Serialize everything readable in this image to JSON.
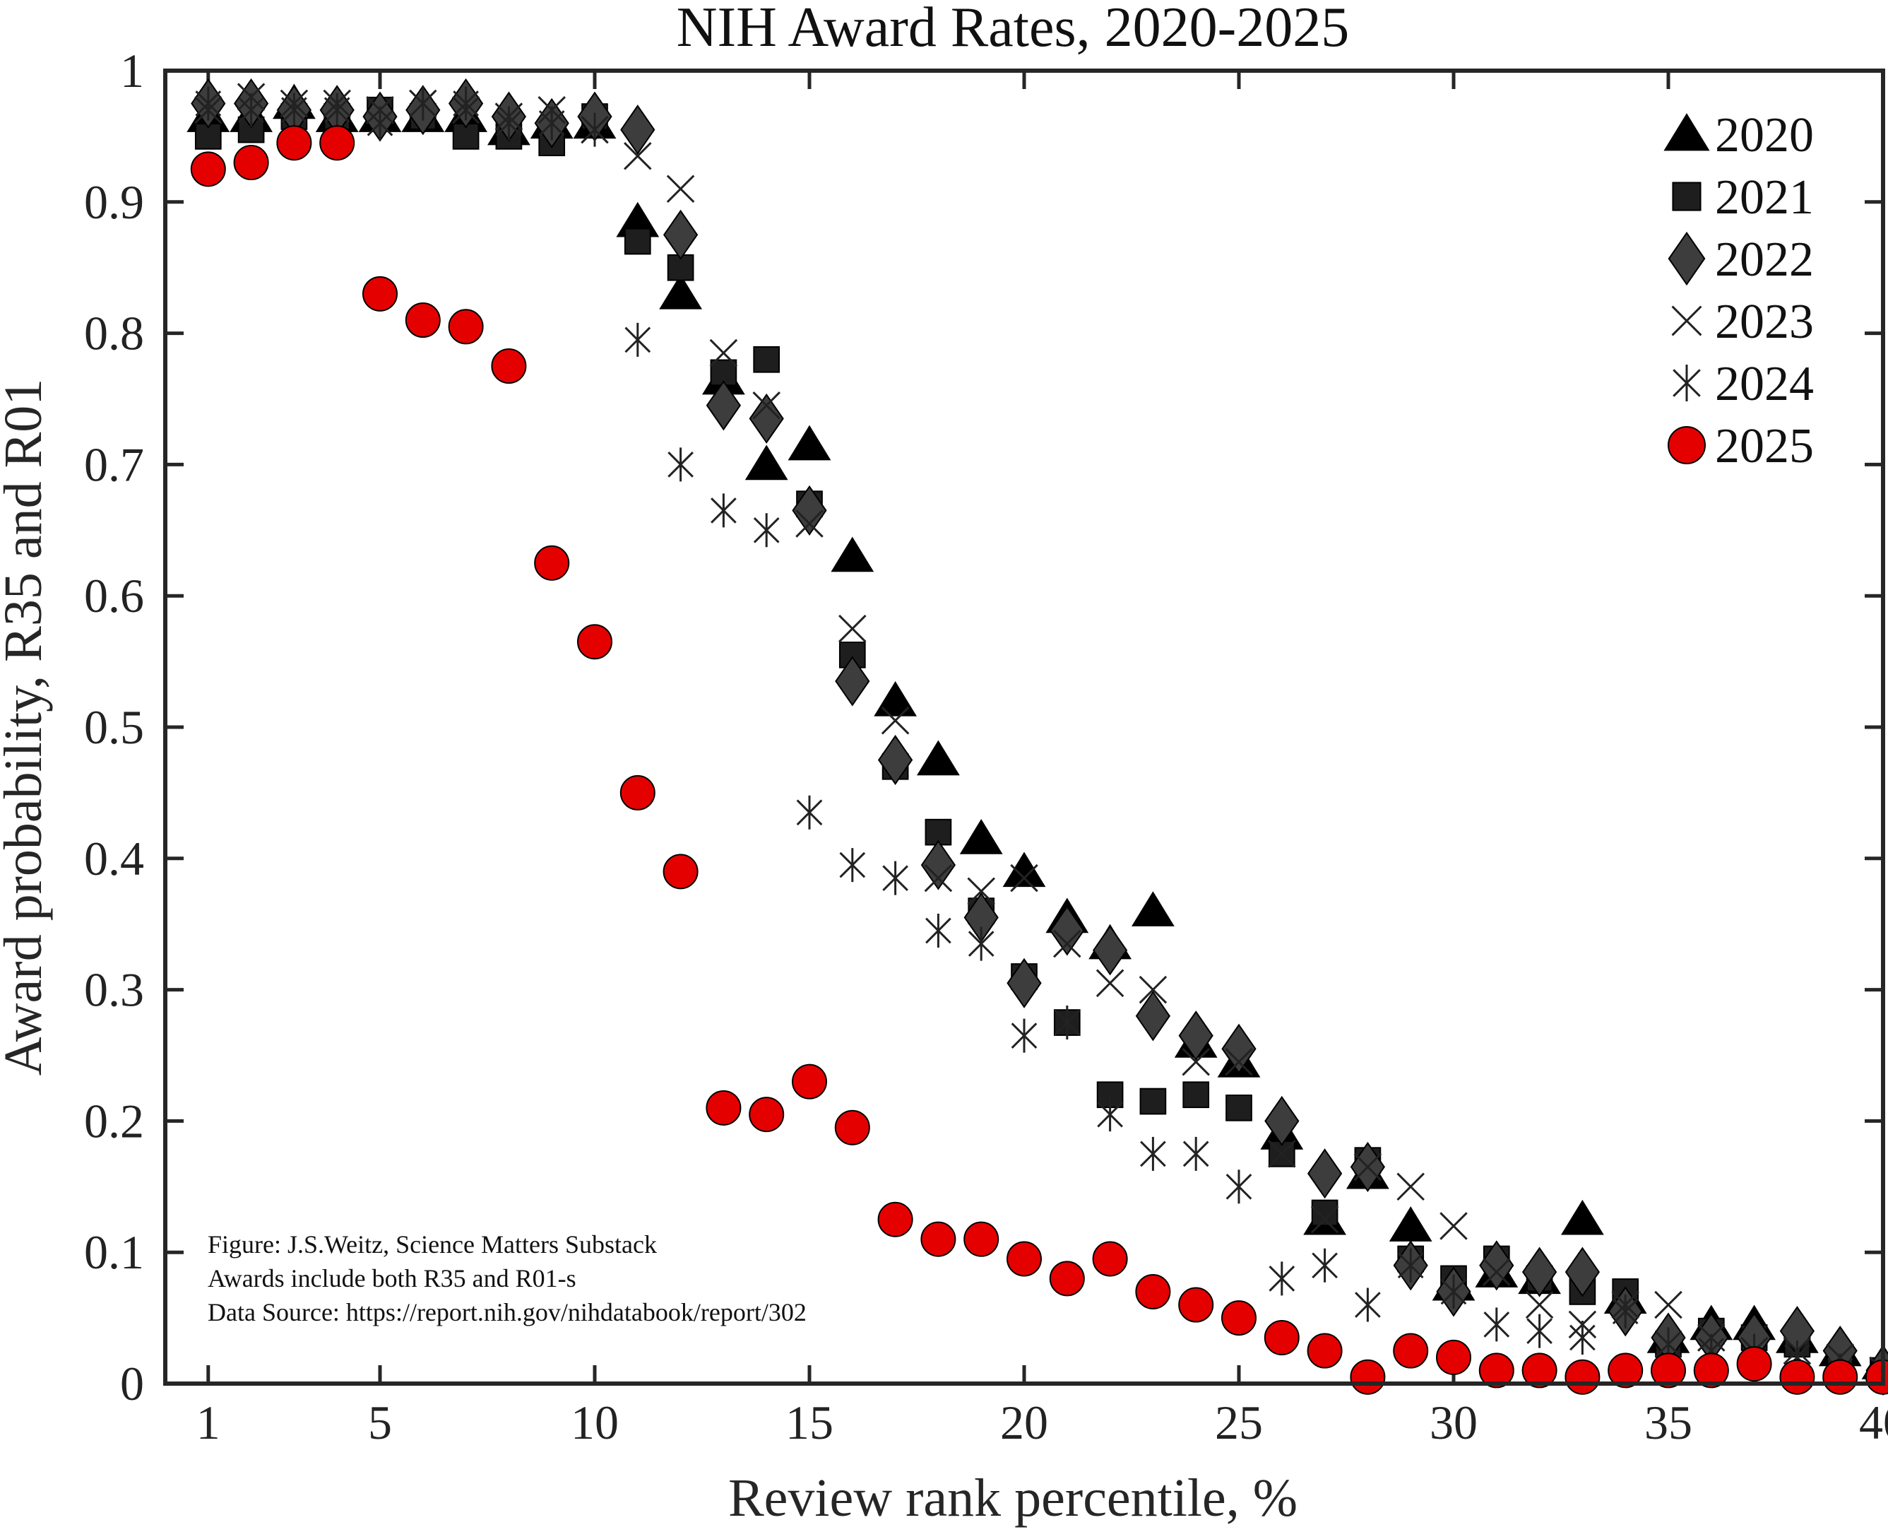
{
  "chart_data": {
    "type": "scatter",
    "title": "NIH Award Rates, 2020-2025",
    "xlabel": "Review rank percentile, %",
    "ylabel": "Award probability, R35 and R01",
    "xlim": [
      0,
      40
    ],
    "ylim": [
      0,
      1
    ],
    "xticks": [
      1,
      5,
      10,
      15,
      20,
      25,
      30,
      35,
      40
    ],
    "yticks": [
      0,
      0.1,
      0.2,
      0.3,
      0.4,
      0.5,
      0.6,
      0.7,
      0.8,
      0.9,
      1
    ],
    "ytick_labels": [
      "0",
      "0.1",
      "0.2",
      "0.3",
      "0.4",
      "0.5",
      "0.6",
      "0.7",
      "0.8",
      "0.9",
      "1"
    ],
    "grid": false,
    "legend_position": "top-right",
    "annotation": [
      "Figure: J.S.Weitz, Science Matters Substack",
      "Awards include both R35 and R01-s",
      "Data Source: https://report.nih.gov/nihdatabook/report/302"
    ],
    "x": [
      1,
      2,
      3,
      4,
      5,
      6,
      7,
      8,
      9,
      10,
      11,
      12,
      13,
      14,
      15,
      16,
      17,
      18,
      19,
      20,
      21,
      22,
      23,
      24,
      25,
      26,
      27,
      28,
      29,
      30,
      31,
      32,
      33,
      34,
      35,
      36,
      37,
      38,
      39,
      40
    ],
    "series": [
      {
        "name": "2020",
        "marker": "triangle",
        "color": "#000000",
        "values": [
          0.965,
          0.965,
          0.975,
          0.965,
          0.965,
          0.965,
          0.965,
          0.955,
          0.96,
          0.96,
          0.885,
          0.83,
          0.765,
          0.7,
          0.715,
          0.63,
          0.52,
          0.475,
          0.415,
          0.39,
          0.355,
          0.335,
          0.36,
          0.26,
          0.245,
          0.19,
          0.125,
          0.16,
          0.12,
          0.075,
          0.085,
          0.08,
          0.125,
          0.065,
          0.035,
          0.045,
          0.045,
          0.035,
          0.025,
          0.015
        ]
      },
      {
        "name": "2021",
        "marker": "square",
        "color": "#1e1e1e",
        "values": [
          0.95,
          0.955,
          0.965,
          0.965,
          0.97,
          0.965,
          0.95,
          0.95,
          0.945,
          0.965,
          0.87,
          0.85,
          0.77,
          0.78,
          0.67,
          0.555,
          0.47,
          0.42,
          0.36,
          0.31,
          0.275,
          0.22,
          0.215,
          0.22,
          0.21,
          0.175,
          0.13,
          0.17,
          0.095,
          0.08,
          0.095,
          0.08,
          0.07,
          0.07,
          0.03,
          0.04,
          0.035,
          0.03,
          0.02,
          0.01
        ]
      },
      {
        "name": "2022",
        "marker": "diamond",
        "color": "#3d3d3d",
        "values": [
          0.975,
          0.975,
          0.97,
          0.97,
          0.965,
          0.97,
          0.975,
          0.965,
          0.96,
          0.965,
          0.955,
          0.875,
          0.745,
          0.735,
          0.665,
          0.535,
          0.475,
          0.395,
          0.355,
          0.305,
          0.345,
          0.33,
          0.28,
          0.265,
          0.255,
          0.2,
          0.16,
          0.165,
          0.09,
          0.07,
          0.09,
          0.085,
          0.085,
          0.055,
          0.035,
          0.035,
          0.035,
          0.04,
          0.025,
          0.01
        ]
      },
      {
        "name": "2023",
        "marker": "x",
        "color": "#222222",
        "values": [
          0.97,
          0.98,
          0.975,
          0.975,
          0.97,
          0.975,
          0.97,
          0.965,
          0.97,
          0.955,
          0.935,
          0.91,
          0.785,
          0.745,
          0.655,
          0.575,
          0.505,
          0.385,
          0.375,
          0.385,
          0.335,
          0.305,
          0.3,
          0.245,
          0.245,
          0.175,
          0.125,
          0.165,
          0.15,
          0.12,
          0.085,
          0.06,
          0.045,
          0.06,
          0.06,
          0.035,
          0.025,
          0.025,
          0.02,
          0.01
        ]
      },
      {
        "name": "2024",
        "marker": "asterisk",
        "color": "#222222",
        "values": [
          0.975,
          0.97,
          0.97,
          0.97,
          0.96,
          0.975,
          0.975,
          0.96,
          0.96,
          0.955,
          0.795,
          0.7,
          0.665,
          0.65,
          0.435,
          0.395,
          0.385,
          0.345,
          0.335,
          0.265,
          0.275,
          0.205,
          0.175,
          0.175,
          0.15,
          0.08,
          0.09,
          0.06,
          0.09,
          0.07,
          0.045,
          0.04,
          0.035,
          0.055,
          0.03,
          0.025,
          0.025,
          0.02,
          0.01,
          0.005
        ]
      },
      {
        "name": "2025",
        "marker": "circle",
        "color": "#e50000",
        "values": [
          0.925,
          0.93,
          0.945,
          0.945,
          0.83,
          0.81,
          0.805,
          0.775,
          0.625,
          0.565,
          0.45,
          0.39,
          0.21,
          0.205,
          0.23,
          0.195,
          0.125,
          0.11,
          0.11,
          0.095,
          0.08,
          0.095,
          0.07,
          0.06,
          0.05,
          0.035,
          0.025,
          0.005,
          0.025,
          0.02,
          0.01,
          0.01,
          0.005,
          0.01,
          0.01,
          0.01,
          0.015,
          0.005,
          0.005,
          0.005
        ]
      }
    ]
  }
}
